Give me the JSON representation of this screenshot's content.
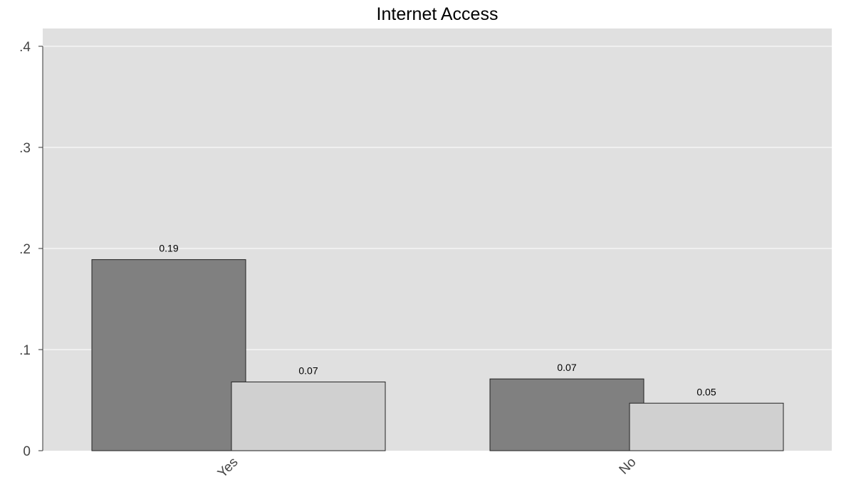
{
  "chart_data": {
    "type": "bar",
    "title": "Internet Access",
    "xlabel": "",
    "ylabel": "",
    "categories": [
      "Yes",
      "No"
    ],
    "series": [
      {
        "values": [
          0.189,
          0.071
        ],
        "labels": [
          "0.19",
          "0.07"
        ],
        "color": "#808080"
      },
      {
        "values": [
          0.068,
          0.047
        ],
        "labels": [
          "0.07",
          "0.05"
        ],
        "color": "#d0d0d0"
      }
    ],
    "ylim": [
      0,
      0.4
    ],
    "yticks": [
      0,
      0.1,
      0.2,
      0.3,
      0.4
    ],
    "ytick_labels": [
      "0",
      ".1",
      ".2",
      ".3",
      ".4"
    ],
    "grid": true,
    "legend": "none",
    "plot_background": "#e0e0e0"
  }
}
